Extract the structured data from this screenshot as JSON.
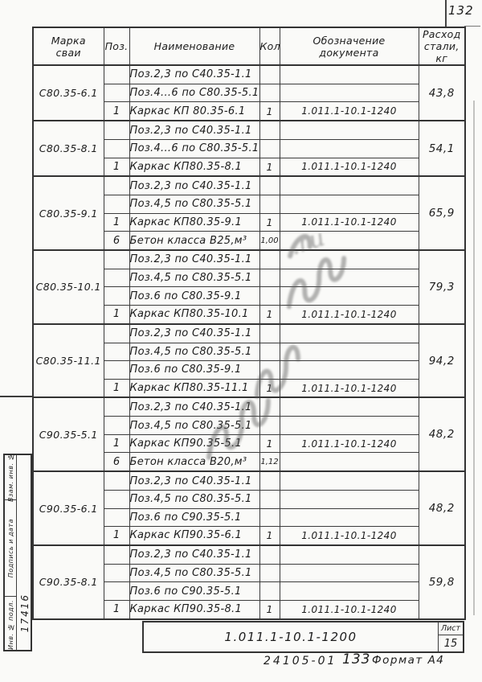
{
  "page": {
    "page_number_top": "132",
    "footer_order_number": "24105-01",
    "footer_page_number": "133",
    "footer_format": "Формат А4",
    "watermark_text": ".ru"
  },
  "title_block": {
    "doc_designation": "1.011.1-10.1-1200",
    "sheet_label": "Лист",
    "sheet_number": "15"
  },
  "margin": {
    "labels": [
      "Взам. инв. №",
      "Подпись и дата",
      "Инв. № подл."
    ],
    "inventory_number": "17416"
  },
  "table": {
    "headers": {
      "mark": "Марка\nсваи",
      "pos": "Поз.",
      "name": "Наименование",
      "qty": "Кол.",
      "doc": "Обозначение\nдокумента",
      "steel": "Расход\nстали,\nкг"
    },
    "groups": [
      {
        "mark": "С80.35-6.1",
        "steel": "43,8",
        "rows": [
          {
            "pos": "",
            "name": "Поз.2,3 по С40.35-1.1",
            "qty": "",
            "doc": ""
          },
          {
            "pos": "",
            "name": "Поз.4...6 по С80.35-5.1",
            "qty": "",
            "doc": ""
          },
          {
            "pos": "1",
            "name": "Каркас КП 80.35-6.1",
            "qty": "1",
            "doc": "1.011.1-10.1-1240"
          }
        ]
      },
      {
        "mark": "С80.35-8.1",
        "steel": "54,1",
        "rows": [
          {
            "pos": "",
            "name": "Поз.2,3 по С40.35-1.1",
            "qty": "",
            "doc": ""
          },
          {
            "pos": "",
            "name": "Поз.4...6 по С80.35-5.1",
            "qty": "",
            "doc": ""
          },
          {
            "pos": "1",
            "name": "Каркас КП80.35-8.1",
            "qty": "1",
            "doc": "1.011.1-10.1-1240"
          }
        ]
      },
      {
        "mark": "С80.35-9.1",
        "steel": "65,9",
        "rows": [
          {
            "pos": "",
            "name": "Поз.2,3 по С40.35-1.1",
            "qty": "",
            "doc": ""
          },
          {
            "pos": "",
            "name": "Поз.4,5 по С80.35-5.1",
            "qty": "",
            "doc": ""
          },
          {
            "pos": "1",
            "name": "Каркас КП80.35-9.1",
            "qty": "1",
            "doc": "1.011.1-10.1-1240"
          },
          {
            "pos": "6",
            "name": "Бетон класса В25,м³",
            "qty": "1,00",
            "doc": ""
          }
        ]
      },
      {
        "mark": "С80.35-10.1",
        "steel": "79,3",
        "rows": [
          {
            "pos": "",
            "name": "Поз.2,3 по С40.35-1.1",
            "qty": "",
            "doc": ""
          },
          {
            "pos": "",
            "name": "Поз.4,5 по С80.35-5.1",
            "qty": "",
            "doc": ""
          },
          {
            "pos": "",
            "name": "Поз.6 по С80.35-9.1",
            "qty": "",
            "doc": ""
          },
          {
            "pos": "1",
            "name": "Каркас КП80.35-10.1",
            "qty": "1",
            "doc": "1.011.1-10.1-1240"
          }
        ]
      },
      {
        "mark": "С80.35-11.1",
        "steel": "94,2",
        "rows": [
          {
            "pos": "",
            "name": "Поз.2,3 по С40.35-1.1",
            "qty": "",
            "doc": ""
          },
          {
            "pos": "",
            "name": "Поз.4,5 по С80.35-5.1",
            "qty": "",
            "doc": ""
          },
          {
            "pos": "",
            "name": "Поз.6 по С80.35-9.1",
            "qty": "",
            "doc": ""
          },
          {
            "pos": "1",
            "name": "Каркас КП80.35-11.1",
            "qty": "1",
            "doc": "1.011.1-10.1-1240"
          }
        ]
      },
      {
        "mark": "С90.35-5.1",
        "steel": "48,2",
        "rows": [
          {
            "pos": "",
            "name": "Поз.2,3 по С40.35-1.1",
            "qty": "",
            "doc": ""
          },
          {
            "pos": "",
            "name": "Поз.4,5 по С80.35-5.1",
            "qty": "",
            "doc": ""
          },
          {
            "pos": "1",
            "name": "Каркас КП90.35-5.1",
            "qty": "1",
            "doc": "1.011.1-10.1-1240"
          },
          {
            "pos": "6",
            "name": "Бетон класса В20,м³",
            "qty": "1,12",
            "doc": ""
          }
        ]
      },
      {
        "mark": "С90.35-6.1",
        "steel": "48,2",
        "rows": [
          {
            "pos": "",
            "name": "Поз.2,3 по С40.35-1.1",
            "qty": "",
            "doc": ""
          },
          {
            "pos": "",
            "name": "Поз.4,5 по С80.35-5.1",
            "qty": "",
            "doc": ""
          },
          {
            "pos": "",
            "name": "Поз.6 по С90.35-5.1",
            "qty": "",
            "doc": ""
          },
          {
            "pos": "1",
            "name": "Каркас КП90.35-6.1",
            "qty": "1",
            "doc": "1.011.1-10.1-1240"
          }
        ]
      },
      {
        "mark": "С90.35-8.1",
        "steel": "59,8",
        "rows": [
          {
            "pos": "",
            "name": "Поз.2,3 по С40.35-1.1",
            "qty": "",
            "doc": ""
          },
          {
            "pos": "",
            "name": "Поз.4,5 по С80.35-5.1",
            "qty": "",
            "doc": ""
          },
          {
            "pos": "",
            "name": "Поз.6 по С90.35-5.1",
            "qty": "",
            "doc": ""
          },
          {
            "pos": "1",
            "name": "Каркас КП90.35-8.1",
            "qty": "1",
            "doc": "1.011.1-10.1-1240"
          }
        ]
      }
    ]
  }
}
